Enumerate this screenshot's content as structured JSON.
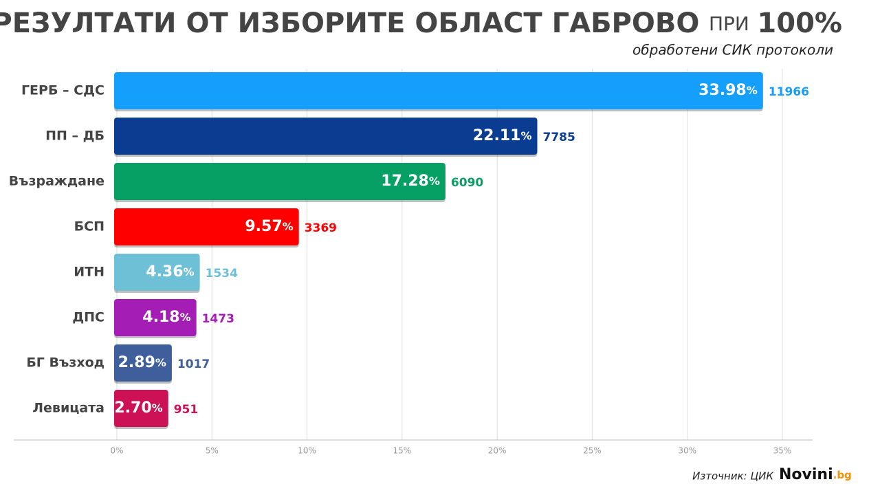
{
  "chart_data": {
    "type": "bar",
    "orientation": "horizontal",
    "title": "РЕЗУЛТАТИ ОТ ИЗБОРИТЕ ОБЛАСТ ГАБРОВО",
    "title_connector": "ПРИ",
    "title_value": "100%",
    "subtitle": "обработени СИК протоколи",
    "categories": [
      "ГЕРБ – СДС",
      "ПП – ДБ",
      "Възраждане",
      "БСП",
      "ИТН",
      "ДПС",
      "БГ Възход",
      "Левицата"
    ],
    "values": [
      33.98,
      22.11,
      17.28,
      9.57,
      4.36,
      4.18,
      2.89,
      2.7
    ],
    "value_labels": [
      "33.98%",
      "22.11%",
      "17.28%",
      "9.57%",
      "4.36%",
      "4.18%",
      "2.89%",
      "2.70%"
    ],
    "votes": [
      11966,
      7785,
      6090,
      3369,
      1534,
      1473,
      1017,
      951
    ],
    "colors": [
      "#149ffc",
      "#0a3d91",
      "#06a065",
      "#ff0000",
      "#6ec0d6",
      "#a41eb6",
      "#3e5f9b",
      "#cc1157"
    ],
    "xlim": [
      0,
      35
    ],
    "xticks": [
      {
        "value": 0,
        "label": "0%"
      },
      {
        "value": 5,
        "label": "5%"
      },
      {
        "value": 10,
        "label": "10%"
      },
      {
        "value": 15,
        "label": "15%"
      },
      {
        "value": 20,
        "label": "20%"
      },
      {
        "value": 25,
        "label": "25%"
      },
      {
        "value": 30,
        "label": "30%"
      },
      {
        "value": 35,
        "label": "35%"
      }
    ],
    "grid": true,
    "source": "Източник: ЦИК",
    "logo": "Novini",
    "logo_tld": ".bg"
  }
}
